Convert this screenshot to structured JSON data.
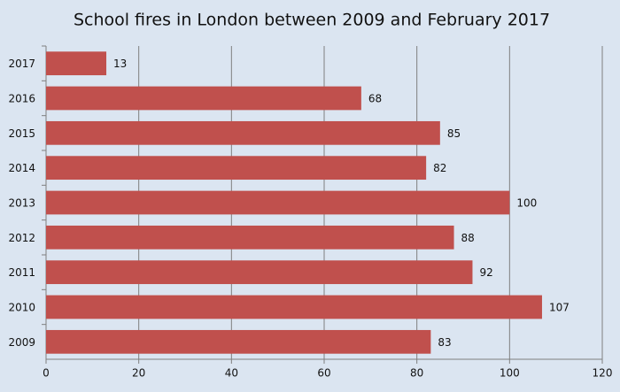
{
  "chart_data": {
    "type": "hbar",
    "title": "School fires in London between 2009 and February 2017",
    "categories": [
      "2017",
      "2016",
      "2015",
      "2014",
      "2013",
      "2012",
      "2011",
      "2010",
      "2009"
    ],
    "values": [
      13,
      68,
      85,
      82,
      100,
      88,
      92,
      107,
      83
    ],
    "color": "#c0504d",
    "xlim": [
      0,
      120
    ],
    "xticks": [
      0,
      20,
      40,
      60,
      80,
      100,
      120
    ],
    "grid": true
  }
}
